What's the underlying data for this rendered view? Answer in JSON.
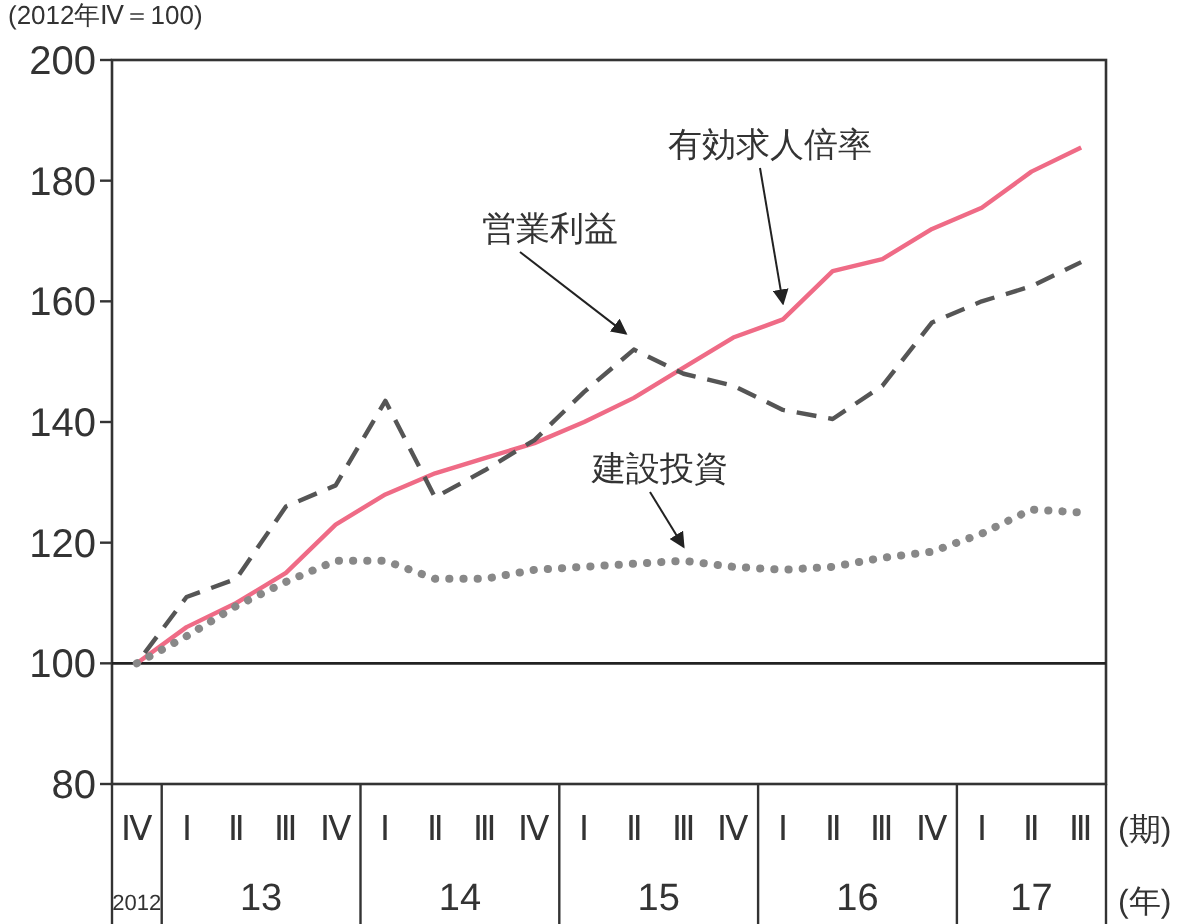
{
  "chart_data": {
    "type": "line",
    "ylabel": "(2012年Ⅳ＝100)",
    "categories": [
      "Ⅳ",
      "Ⅰ",
      "Ⅱ",
      "Ⅲ",
      "Ⅳ",
      "Ⅰ",
      "Ⅱ",
      "Ⅲ",
      "Ⅳ",
      "Ⅰ",
      "Ⅱ",
      "Ⅲ",
      "Ⅳ",
      "Ⅰ",
      "Ⅱ",
      "Ⅲ",
      "Ⅳ",
      "Ⅰ",
      "Ⅱ",
      "Ⅲ"
    ],
    "series": [
      {
        "name": "有効求人倍率",
        "color": "#ef6b86",
        "line_style": "solid",
        "values": [
          100,
          106,
          110,
          115,
          123,
          128,
          131.5,
          134,
          136.5,
          140,
          144,
          149,
          154,
          157,
          165,
          167,
          172,
          175.5,
          181.5,
          185.5
        ]
      },
      {
        "name": "営業利益",
        "color": "#555555",
        "line_style": "dashed",
        "values": [
          100,
          111,
          114,
          126,
          129.5,
          143.5,
          127.5,
          132,
          137,
          145,
          152,
          148,
          146,
          142,
          140.5,
          146,
          156.5,
          160,
          162.5,
          166.5
        ]
      },
      {
        "name": "建設投資",
        "color": "#888888",
        "line_style": "dotted",
        "values": [
          100,
          104.5,
          109.5,
          113.5,
          117,
          117,
          114,
          114,
          115.5,
          116,
          116.5,
          117,
          116,
          115.5,
          116,
          117.5,
          118.5,
          121.5,
          125.5,
          125
        ]
      }
    ],
    "ylim": [
      80,
      200
    ],
    "yticks": [
      80,
      100,
      120,
      140,
      160,
      180,
      200
    ],
    "ref_lines": [
      {
        "axis": "y",
        "value": 100,
        "color": "#222222"
      }
    ],
    "grid": false,
    "marker": "none",
    "annotations": [
      "(期)",
      "(年)",
      "2012",
      "13",
      "14",
      "15",
      "16",
      "17"
    ]
  }
}
